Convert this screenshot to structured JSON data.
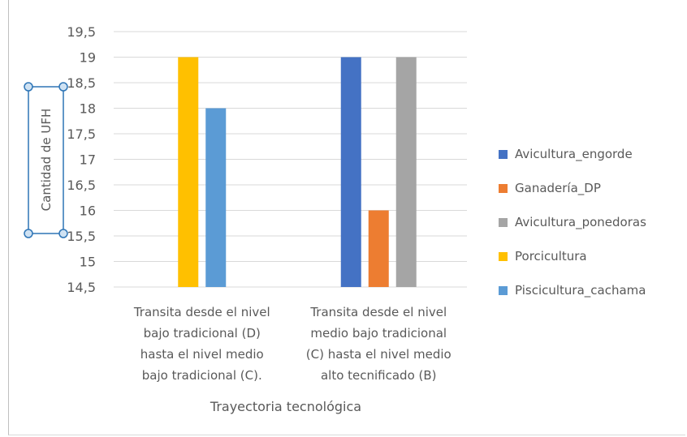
{
  "chart_data": {
    "type": "bar",
    "title": "",
    "xlabel": "Trayectoria tecnológica",
    "ylabel": "Cantidad de UFH",
    "ylim": [
      14.5,
      19.5
    ],
    "yticks": [
      "19,5",
      "19",
      "18,5",
      "18",
      "17,5",
      "17",
      "16,5",
      "16",
      "15,5",
      "15",
      "14,5"
    ],
    "grid": true,
    "legend_position": "right",
    "categories": [
      [
        "Transita desde el nivel",
        "bajo tradicional (D)",
        "hasta el nivel medio",
        "bajo tradicional (C)."
      ],
      [
        "Transita desde el nivel",
        "medio bajo tradicional",
        "(C) hasta el nivel medio",
        "alto tecnificado (B)"
      ]
    ],
    "series": [
      {
        "name": "Avicultura_engorde",
        "color": "#4472c4",
        "values": [
          null,
          19
        ]
      },
      {
        "name": "Ganadería_DP",
        "color": "#ed7d31",
        "values": [
          null,
          16
        ]
      },
      {
        "name": "Avicultura_ponedoras",
        "color": "#a5a5a5",
        "values": [
          null,
          19
        ]
      },
      {
        "name": "Porcicultura",
        "color": "#ffc000",
        "values": [
          19,
          null
        ]
      },
      {
        "name": "Piscicultura_cachama",
        "color": "#5b9bd5",
        "values": [
          18,
          null
        ]
      }
    ]
  }
}
